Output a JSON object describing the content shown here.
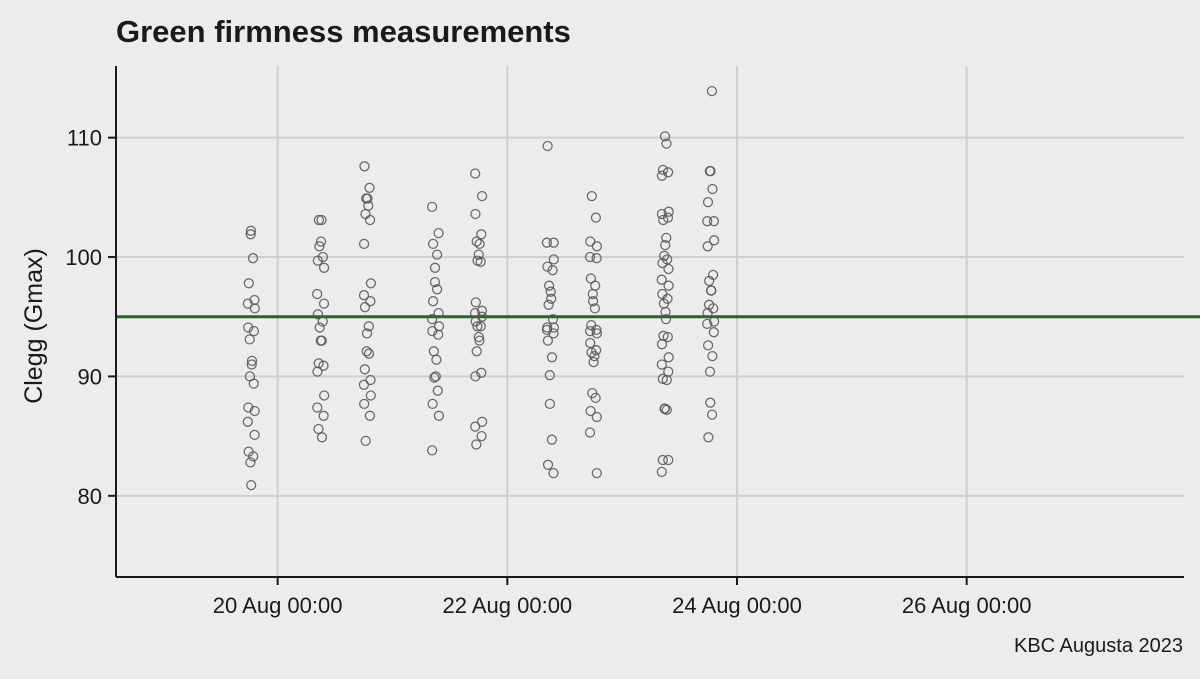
{
  "chart_data": {
    "type": "scatter",
    "title": "Green firmness measurements",
    "caption": "KBC Augusta 2023",
    "xlabel": "",
    "ylabel": "Clegg (Gmax)",
    "xlim": [
      "2023-08-18T14:13",
      "2023-08-27T21:25"
    ],
    "ylim": [
      73.2,
      116.0
    ],
    "x_ticks": [
      {
        "value": "2023-08-20T00:00",
        "label": "20 Aug 00:00"
      },
      {
        "value": "2023-08-22T00:00",
        "label": "22 Aug 00:00"
      },
      {
        "value": "2023-08-24T00:00",
        "label": "24 Aug 00:00"
      },
      {
        "value": "2023-08-26T00:00",
        "label": "26 Aug 00:00"
      }
    ],
    "y_ticks": [
      80,
      90,
      100,
      110
    ],
    "grid": true,
    "reference_line": {
      "y": 95,
      "color": "#1e6b1e"
    },
    "point_color": "#555555",
    "groups": [
      {
        "x": "2023-08-19T18:30",
        "y": [
          102.2,
          101.9,
          99.9,
          97.8,
          96.4,
          96.1,
          95.7,
          94.1,
          93.8,
          93.1,
          91.3,
          91.0,
          90.0,
          89.4,
          87.4,
          87.1,
          86.2,
          85.1,
          83.7,
          83.3,
          82.8,
          80.9
        ]
      },
      {
        "x": "2023-08-20T09:00",
        "y": [
          103.1,
          103.1,
          101.3,
          100.9,
          100.0,
          99.7,
          99.1,
          96.9,
          96.1,
          95.2,
          94.6,
          94.1,
          93.0,
          93.0,
          91.1,
          90.9,
          90.4,
          88.4,
          87.4,
          86.7,
          85.6,
          84.9
        ]
      },
      {
        "x": "2023-08-20T18:45",
        "y": [
          107.6,
          105.8,
          104.9,
          104.9,
          104.3,
          103.6,
          103.1,
          101.1,
          97.8,
          96.8,
          96.3,
          95.8,
          94.2,
          93.6,
          92.1,
          91.9,
          90.6,
          89.7,
          89.3,
          88.4,
          87.7,
          86.7,
          84.6
        ]
      },
      {
        "x": "2023-08-21T09:00",
        "y": [
          104.2,
          102.0,
          101.1,
          100.2,
          99.1,
          97.9,
          97.3,
          96.3,
          95.3,
          94.8,
          94.2,
          93.8,
          93.5,
          92.1,
          91.4,
          90.0,
          89.9,
          88.8,
          87.7,
          86.7,
          83.8
        ]
      },
      {
        "x": "2023-08-21T18:00",
        "y": [
          107.0,
          105.1,
          103.6,
          101.9,
          101.3,
          101.1,
          100.2,
          99.7,
          99.6,
          96.2,
          95.5,
          95.3,
          95.0,
          94.6,
          94.2,
          94.2,
          93.3,
          93.0,
          92.1,
          90.3,
          90.0,
          86.2,
          85.8,
          85.0,
          84.3
        ]
      },
      {
        "x": "2023-08-22T09:00",
        "y": [
          109.3,
          101.2,
          101.2,
          99.8,
          99.2,
          98.9,
          97.6,
          97.1,
          96.5,
          96.0,
          94.8,
          94.1,
          94.1,
          93.9,
          93.6,
          93.0,
          91.6,
          90.1,
          87.7,
          84.7,
          82.6,
          81.9
        ]
      },
      {
        "x": "2023-08-22T18:00",
        "y": [
          105.1,
          103.3,
          101.3,
          100.9,
          100.0,
          99.9,
          98.2,
          97.6,
          96.9,
          96.3,
          95.7,
          94.3,
          93.9,
          93.8,
          93.6,
          92.8,
          92.2,
          92.0,
          91.7,
          91.2,
          88.6,
          88.2,
          87.1,
          86.6,
          85.3,
          81.9
        ]
      },
      {
        "x": "2023-08-23T09:00",
        "y": [
          110.1,
          109.5,
          107.3,
          107.1,
          106.8,
          103.8,
          103.6,
          103.3,
          103.1,
          101.6,
          101.0,
          100.1,
          99.8,
          99.5,
          99.0,
          98.1,
          97.6,
          96.9,
          96.5,
          96.1,
          95.4,
          94.8,
          93.4,
          93.3,
          92.7,
          91.6,
          91.0,
          90.4,
          89.8,
          89.7,
          87.3,
          87.3,
          87.2,
          83.0,
          83.0,
          82.0
        ]
      },
      {
        "x": "2023-08-23T18:30",
        "y": [
          113.9,
          107.2,
          107.2,
          105.7,
          104.6,
          103.0,
          103.0,
          101.4,
          100.9,
          98.5,
          98.0,
          97.2,
          97.2,
          96.0,
          95.7,
          95.3,
          94.6,
          94.4,
          93.7,
          92.6,
          91.7,
          90.4,
          87.8,
          86.8,
          84.9
        ]
      }
    ]
  }
}
